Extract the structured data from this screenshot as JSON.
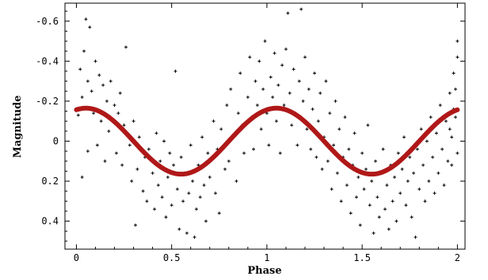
{
  "chart_data": {
    "type": "scatter",
    "title": "",
    "xlabel": "Phase",
    "ylabel": "Magnitude",
    "xlim": [
      -0.06,
      2.04
    ],
    "ylim": [
      0.54,
      -0.69
    ],
    "y_axis_inverted": true,
    "x_ticks": [
      {
        "value": 0,
        "label": "0"
      },
      {
        "value": 0.5,
        "label": "0.5"
      },
      {
        "value": 1,
        "label": "1"
      },
      {
        "value": 1.5,
        "label": "1.5"
      },
      {
        "value": 2,
        "label": "2"
      }
    ],
    "y_ticks": [
      {
        "value": -0.6,
        "label": "-0.6"
      },
      {
        "value": -0.4,
        "label": "-0.4"
      },
      {
        "value": -0.2,
        "label": "-0.2"
      },
      {
        "value": 0,
        "label": "0"
      },
      {
        "value": 0.2,
        "label": "0.2"
      },
      {
        "value": 0.4,
        "label": "0.4"
      }
    ],
    "grid": false,
    "series": [
      {
        "kind": "points",
        "marker": "+",
        "color": "#000000",
        "points": [
          [
            0.01,
            -0.13
          ],
          [
            0.02,
            -0.36
          ],
          [
            0.03,
            -0.22
          ],
          [
            0.03,
            0.18
          ],
          [
            0.04,
            -0.45
          ],
          [
            0.05,
            -0.61
          ],
          [
            0.06,
            -0.3
          ],
          [
            0.06,
            0.05
          ],
          [
            0.07,
            -0.57
          ],
          [
            0.08,
            -0.25
          ],
          [
            0.09,
            -0.14
          ],
          [
            0.1,
            -0.4
          ],
          [
            0.11,
            0.02
          ],
          [
            0.12,
            -0.33
          ],
          [
            0.13,
            -0.1
          ],
          [
            0.14,
            -0.28
          ],
          [
            0.15,
            0.1
          ],
          [
            0.16,
            -0.2
          ],
          [
            0.17,
            -0.05
          ],
          [
            0.18,
            -0.3
          ],
          [
            0.2,
            -0.18
          ],
          [
            0.21,
            0.06
          ],
          [
            0.22,
            -0.14
          ],
          [
            0.23,
            -0.24
          ],
          [
            0.24,
            0.12
          ],
          [
            0.25,
            -0.08
          ],
          [
            0.26,
            -0.47
          ],
          [
            0.28,
            0.02
          ],
          [
            0.29,
            0.2
          ],
          [
            0.3,
            -0.1
          ],
          [
            0.31,
            0.42
          ],
          [
            0.32,
            0.14
          ],
          [
            0.33,
            -0.02
          ],
          [
            0.35,
            0.25
          ],
          [
            0.36,
            0.08
          ],
          [
            0.37,
            0.3
          ],
          [
            0.38,
            0.04
          ],
          [
            0.4,
            0.16
          ],
          [
            0.41,
            0.34
          ],
          [
            0.42,
            -0.04
          ],
          [
            0.43,
            0.22
          ],
          [
            0.44,
            0.1
          ],
          [
            0.45,
            0.28
          ],
          [
            0.46,
            0.0
          ],
          [
            0.47,
            0.38
          ],
          [
            0.48,
            0.18
          ],
          [
            0.49,
            0.06
          ],
          [
            0.5,
            0.32
          ],
          [
            0.51,
            0.12
          ],
          [
            0.52,
            -0.35
          ],
          [
            0.53,
            0.24
          ],
          [
            0.54,
            0.44
          ],
          [
            0.55,
            0.08
          ],
          [
            0.56,
            0.3
          ],
          [
            0.57,
            0.16
          ],
          [
            0.58,
            0.46
          ],
          [
            0.59,
            0.26
          ],
          [
            0.6,
            0.02
          ],
          [
            0.61,
            0.2
          ],
          [
            0.62,
            0.48
          ],
          [
            0.63,
            0.34
          ],
          [
            0.64,
            0.12
          ],
          [
            0.65,
            0.28
          ],
          [
            0.66,
            -0.02
          ],
          [
            0.67,
            0.22
          ],
          [
            0.68,
            0.4
          ],
          [
            0.69,
            0.06
          ],
          [
            0.7,
            0.18
          ],
          [
            0.72,
            -0.1
          ],
          [
            0.73,
            0.26
          ],
          [
            0.74,
            0.04
          ],
          [
            0.75,
            0.36
          ],
          [
            0.76,
            -0.06
          ],
          [
            0.78,
            0.14
          ],
          [
            0.79,
            -0.18
          ],
          [
            0.8,
            0.1
          ],
          [
            0.81,
            -0.26
          ],
          [
            0.82,
            -0.02
          ],
          [
            0.84,
            0.2
          ],
          [
            0.85,
            -0.14
          ],
          [
            0.86,
            -0.34
          ],
          [
            0.87,
            -0.08
          ],
          [
            0.88,
            0.06
          ],
          [
            0.9,
            -0.22
          ],
          [
            0.91,
            -0.42
          ],
          [
            0.92,
            -0.12
          ],
          [
            0.93,
            0.04
          ],
          [
            0.94,
            -0.3
          ],
          [
            0.95,
            -0.18
          ],
          [
            0.96,
            -0.4
          ],
          [
            0.97,
            -0.06
          ],
          [
            0.98,
            -0.26
          ],
          [
            0.99,
            -0.5
          ],
          [
            1.0,
            -0.14
          ],
          [
            1.01,
            0.02
          ],
          [
            1.02,
            -0.32
          ],
          [
            1.03,
            -0.22
          ],
          [
            1.04,
            -0.44
          ],
          [
            1.05,
            -0.1
          ],
          [
            1.06,
            -0.28
          ],
          [
            1.07,
            0.06
          ],
          [
            1.08,
            -0.38
          ],
          [
            1.09,
            -0.18
          ],
          [
            1.1,
            -0.46
          ],
          [
            1.11,
            -0.64
          ],
          [
            1.12,
            -0.24
          ],
          [
            1.13,
            -0.08
          ],
          [
            1.14,
            -0.36
          ],
          [
            1.15,
            -0.14
          ],
          [
            1.16,
            0.02
          ],
          [
            1.17,
            -0.3
          ],
          [
            1.18,
            -0.66
          ],
          [
            1.19,
            -0.2
          ],
          [
            1.2,
            -0.42
          ],
          [
            1.21,
            -0.06
          ],
          [
            1.22,
            -0.26
          ],
          [
            1.23,
            0.04
          ],
          [
            1.24,
            -0.16
          ],
          [
            1.25,
            -0.34
          ],
          [
            1.26,
            0.08
          ],
          [
            1.27,
            -0.1
          ],
          [
            1.28,
            -0.24
          ],
          [
            1.29,
            0.14
          ],
          [
            1.3,
            -0.02
          ],
          [
            1.31,
            -0.3
          ],
          [
            1.32,
            0.1
          ],
          [
            1.33,
            -0.14
          ],
          [
            1.34,
            0.24
          ],
          [
            1.35,
            0.02
          ],
          [
            1.36,
            -0.2
          ],
          [
            1.37,
            0.16
          ],
          [
            1.38,
            -0.06
          ],
          [
            1.39,
            0.3
          ],
          [
            1.4,
            0.08
          ],
          [
            1.41,
            -0.12
          ],
          [
            1.42,
            0.22
          ],
          [
            1.43,
            0.04
          ],
          [
            1.44,
            0.36
          ],
          [
            1.45,
            0.12
          ],
          [
            1.46,
            -0.04
          ],
          [
            1.47,
            0.28
          ],
          [
            1.48,
            0.18
          ],
          [
            1.49,
            0.42
          ],
          [
            1.5,
            0.06
          ],
          [
            1.51,
            0.24
          ],
          [
            1.52,
            0.14
          ],
          [
            1.53,
            -0.08
          ],
          [
            1.54,
            0.32
          ],
          [
            1.55,
            0.2
          ],
          [
            1.56,
            0.46
          ],
          [
            1.57,
            0.1
          ],
          [
            1.58,
            0.28
          ],
          [
            1.59,
            0.38
          ],
          [
            1.6,
            0.16
          ],
          [
            1.61,
            0.04
          ],
          [
            1.62,
            0.34
          ],
          [
            1.63,
            0.22
          ],
          [
            1.64,
            0.44
          ],
          [
            1.65,
            0.12
          ],
          [
            1.66,
            0.3
          ],
          [
            1.67,
            0.18
          ],
          [
            1.68,
            0.4
          ],
          [
            1.69,
            0.06
          ],
          [
            1.7,
            0.26
          ],
          [
            1.71,
            0.14
          ],
          [
            1.72,
            -0.02
          ],
          [
            1.73,
            0.32
          ],
          [
            1.74,
            0.2
          ],
          [
            1.75,
            0.08
          ],
          [
            1.76,
            0.38
          ],
          [
            1.77,
            0.16
          ],
          [
            1.78,
            0.48
          ],
          [
            1.79,
            0.04
          ],
          [
            1.8,
            0.24
          ],
          [
            1.81,
            -0.06
          ],
          [
            1.82,
            0.12
          ],
          [
            1.83,
            0.3
          ],
          [
            1.84,
            0.0
          ],
          [
            1.85,
            0.2
          ],
          [
            1.86,
            -0.12
          ],
          [
            1.87,
            0.08
          ],
          [
            1.88,
            0.26
          ],
          [
            1.89,
            -0.04
          ],
          [
            1.9,
            0.16
          ],
          [
            1.91,
            -0.18
          ],
          [
            1.92,
            0.04
          ],
          [
            1.93,
            0.22
          ],
          [
            1.94,
            -0.1
          ],
          [
            1.95,
            0.1
          ],
          [
            1.96,
            -0.24
          ],
          [
            1.97,
            -0.02
          ],
          [
            1.98,
            -0.34
          ],
          [
            1.99,
            -0.12
          ],
          [
            2.0,
            -0.42
          ],
          [
            2.0,
            0.06
          ],
          [
            2.0,
            -0.5
          ],
          [
            1.99,
            -0.26
          ],
          [
            1.98,
            -0.16
          ],
          [
            1.97,
            0.12
          ],
          [
            1.96,
            -0.06
          ]
        ]
      },
      {
        "kind": "fit",
        "color": "#b01818",
        "mean": 0,
        "amplitude": 0.165,
        "period": 1,
        "maximum_brightness_phase": 0.05
      }
    ]
  }
}
